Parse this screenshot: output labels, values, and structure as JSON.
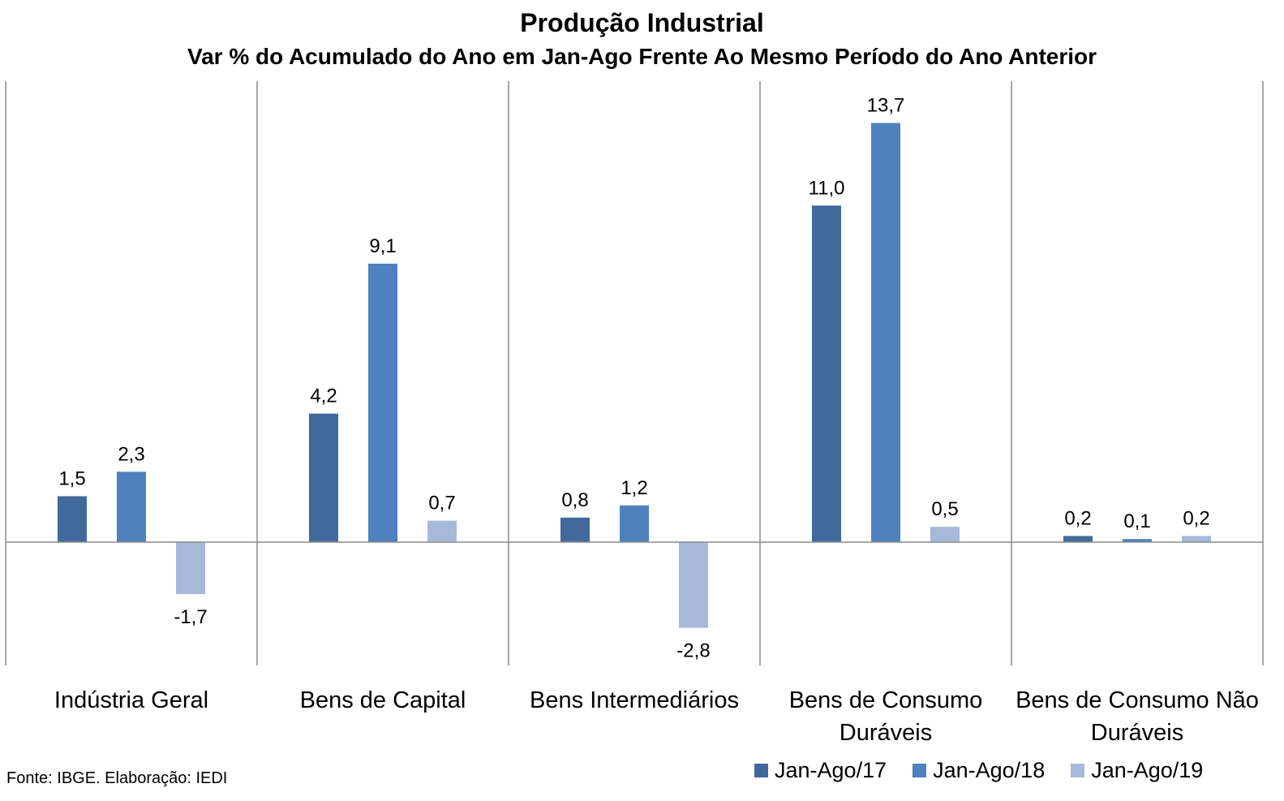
{
  "chart_data": {
    "type": "bar",
    "title": "Produção Industrial",
    "subtitle": "Var % do Acumulado do Ano em Jan-Ago Frente Ao Mesmo Período do Ano Anterior",
    "categories": [
      "Indústria Geral",
      "Bens de Capital",
      "Bens Intermediários",
      "Bens de Consumo Duráveis",
      "Bens de Consumo Não Duráveis"
    ],
    "category_lines": [
      [
        "Indústria Geral"
      ],
      [
        "Bens de Capital"
      ],
      [
        "Bens Intermediários"
      ],
      [
        "Bens de Consumo",
        "Duráveis"
      ],
      [
        "Bens de Consumo Não",
        "Duráveis"
      ]
    ],
    "series": [
      {
        "name": "Jan-Ago/17",
        "color": "#41699b",
        "values": [
          1.5,
          4.2,
          0.8,
          11.0,
          0.2
        ],
        "labels": [
          "1,5",
          "4,2",
          "0,8",
          "11,0",
          "0,2"
        ]
      },
      {
        "name": "Jan-Ago/18",
        "color": "#4f81bd",
        "values": [
          2.3,
          9.1,
          1.2,
          13.7,
          0.1
        ],
        "labels": [
          "2,3",
          "9,1",
          "1,2",
          "13,7",
          "0,1"
        ]
      },
      {
        "name": "Jan-Ago/19",
        "color": "#a7b9d9",
        "values": [
          -1.7,
          0.7,
          -2.8,
          0.5,
          0.2
        ],
        "labels": [
          "-1,7",
          "0,7",
          "-2,8",
          "0,5",
          "0,2"
        ]
      }
    ],
    "ylim": [
      -4,
      15
    ],
    "grid": false,
    "legend": "bottom-right"
  },
  "source": "Fonte: IBGE. Elaboração: IEDI"
}
